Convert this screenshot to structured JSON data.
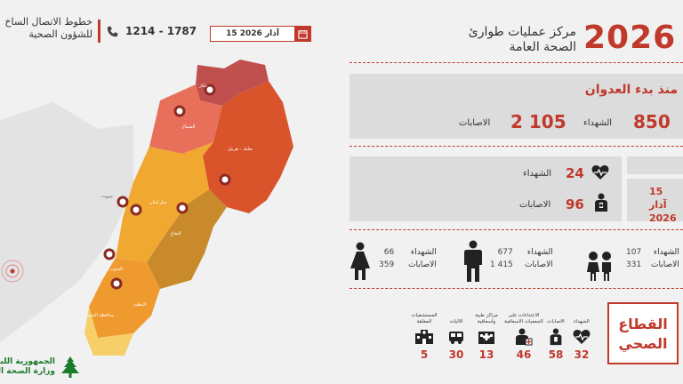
{
  "header": {
    "hotline_title_line1": "خطوط الاتصال الساخ",
    "hotline_title_line2": "للشؤون الصحية",
    "phone_numbers": "1214 - 1787",
    "date": "15 آذار 2026",
    "year": "2026",
    "center_title_line1": "مركز عمليات طوارئ",
    "center_title_line2": "الصحة العامة"
  },
  "since_aggression": {
    "title": "منذ بدء العدوان",
    "martyrs_value": "850",
    "martyrs_label": "الشهداء",
    "injuries_value": "2 105",
    "injuries_label": "الاصابات"
  },
  "daily": {
    "martyrs_value": "24",
    "martyrs_label": "الشهداء",
    "injuries_value": "96",
    "injuries_label": "الاصابات",
    "date_line1": "15 آذار",
    "date_line2": "2026"
  },
  "demographics": [
    {
      "group": "children",
      "martyrs": "107",
      "injuries": "331",
      "martyrs_label": "الشهداء",
      "injuries_label": "الاصابات"
    },
    {
      "group": "men",
      "martyrs": "677",
      "injuries": "1 415",
      "martyrs_label": "الشهداء",
      "injuries_label": "الاصابات"
    },
    {
      "group": "women",
      "martyrs": "66",
      "injuries": "359",
      "martyrs_label": "الشهداء",
      "injuries_label": "الاصابات"
    }
  ],
  "health_sector": {
    "title_line1": "القطاع",
    "title_line2": "الصحي",
    "columns": [
      {
        "label": "الشهداء",
        "value": "32",
        "icon": "heart-pulse-icon"
      },
      {
        "label": "الاصابات",
        "value": "58",
        "icon": "medic-icon"
      },
      {
        "label": "الاعتداءات على الجمعيات الاسعافية",
        "value": "46",
        "icon": "paramedic-icon"
      },
      {
        "label": "مراكز طبية واسعافية",
        "value": "13",
        "icon": "clinic-icon"
      },
      {
        "label": "الاليات",
        "value": "30",
        "icon": "ambulance-icon"
      },
      {
        "label": "المستشفيات المغلقة",
        "value": "5",
        "icon": "hospital-icon"
      }
    ]
  },
  "map": {
    "regions": [
      {
        "name": "عكار",
        "color": "#c0504d"
      },
      {
        "name": "الشمال",
        "color": "#e8705a"
      },
      {
        "name": "بعلبك - هرمل",
        "color": "#d9532b"
      },
      {
        "name": "جبل لبنان",
        "color": "#f0a830"
      },
      {
        "name": "بيروت",
        "color": "#f5c242"
      },
      {
        "name": "البقاع",
        "color": "#c98a2c"
      },
      {
        "name": "الجنوب",
        "color": "#f2b33d"
      },
      {
        "name": "النبطية",
        "color": "#ef9a2f"
      },
      {
        "name": "محافظة الجنوب",
        "color": "#f7cf6a"
      }
    ]
  },
  "footer": {
    "ministry_line1": "الجمهورية اللبنا",
    "ministry_line2": "وزارة الصحة العا"
  },
  "colors": {
    "accent": "#c0392b",
    "panel": "#dcdcdc",
    "background": "#f1f1f1"
  }
}
